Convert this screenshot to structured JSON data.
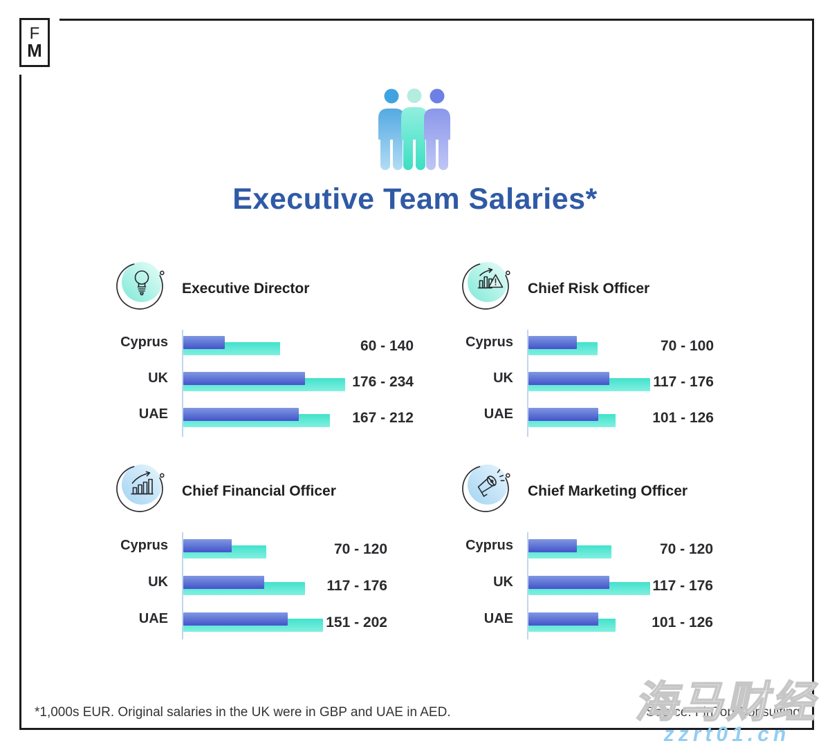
{
  "logo": {
    "line1": "F",
    "line2": "M"
  },
  "header": {
    "title": "Executive Team Salaries*"
  },
  "footer": {
    "footnote": "*1,000s EUR. Original salaries in the UK were in GBP and UAE in AED.",
    "source": "Source: FinTop Consulting"
  },
  "meta": {
    "watermark_cjk": "海马财经",
    "watermark_url": "zzrt01.cn"
  },
  "colors": {
    "title_blue": "#2f5aa6",
    "bar_min_blue": "#5a6fd4",
    "bar_max_teal": "#55e6d1",
    "axis_light_blue": "#bfd6ee",
    "mint_badge": "#8feadb",
    "blue_badge": "#a3d4f2",
    "watermark_blue": "#93cdf2",
    "frame_dark": "#1d1d1f"
  },
  "chart_data": [
    {
      "type": "bar",
      "title": "Executive Director",
      "icon": "lightbulb-icon",
      "icon_theme": "mint",
      "categories": [
        "Cyprus",
        "UK",
        "UAE"
      ],
      "series": [
        {
          "name": "min",
          "values": [
            60,
            176,
            167
          ]
        },
        {
          "name": "max",
          "values": [
            140,
            234,
            212
          ]
        }
      ],
      "range_labels": [
        "60 - 140",
        "176 - 234",
        "167 - 212"
      ],
      "unit": "1,000s EUR",
      "xlim": [
        0,
        250
      ],
      "grid": false,
      "legend": "none"
    },
    {
      "type": "bar",
      "title": "Chief Risk Officer",
      "icon": "risk-chart-warning-icon",
      "icon_theme": "mint",
      "categories": [
        "Cyprus",
        "UK",
        "UAE"
      ],
      "series": [
        {
          "name": "min",
          "values": [
            70,
            117,
            101
          ]
        },
        {
          "name": "max",
          "values": [
            100,
            176,
            126
          ]
        }
      ],
      "range_labels": [
        "70 - 100",
        "117 - 176",
        "101 - 126"
      ],
      "unit": "1,000s EUR",
      "xlim": [
        0,
        250
      ],
      "grid": false,
      "legend": "none"
    },
    {
      "type": "bar",
      "title": "Chief Financial Officer",
      "icon": "growth-bars-icon",
      "icon_theme": "blue",
      "categories": [
        "Cyprus",
        "UK",
        "UAE"
      ],
      "series": [
        {
          "name": "min",
          "values": [
            70,
            117,
            151
          ]
        },
        {
          "name": "max",
          "values": [
            120,
            176,
            202
          ]
        }
      ],
      "range_labels": [
        "70 - 120",
        "117 - 176",
        "151 - 202"
      ],
      "unit": "1,000s EUR",
      "xlim": [
        0,
        250
      ],
      "grid": false,
      "legend": "none"
    },
    {
      "type": "bar",
      "title": "Chief Marketing Officer",
      "icon": "megaphone-icon",
      "icon_theme": "blue",
      "categories": [
        "Cyprus",
        "UK",
        "UAE"
      ],
      "series": [
        {
          "name": "min",
          "values": [
            70,
            117,
            101
          ]
        },
        {
          "name": "max",
          "values": [
            120,
            176,
            126
          ]
        }
      ],
      "range_labels": [
        "70 - 120",
        "117 - 176",
        "101 - 126"
      ],
      "unit": "1,000s EUR",
      "xlim": [
        0,
        250
      ],
      "grid": false,
      "legend": "none"
    }
  ]
}
